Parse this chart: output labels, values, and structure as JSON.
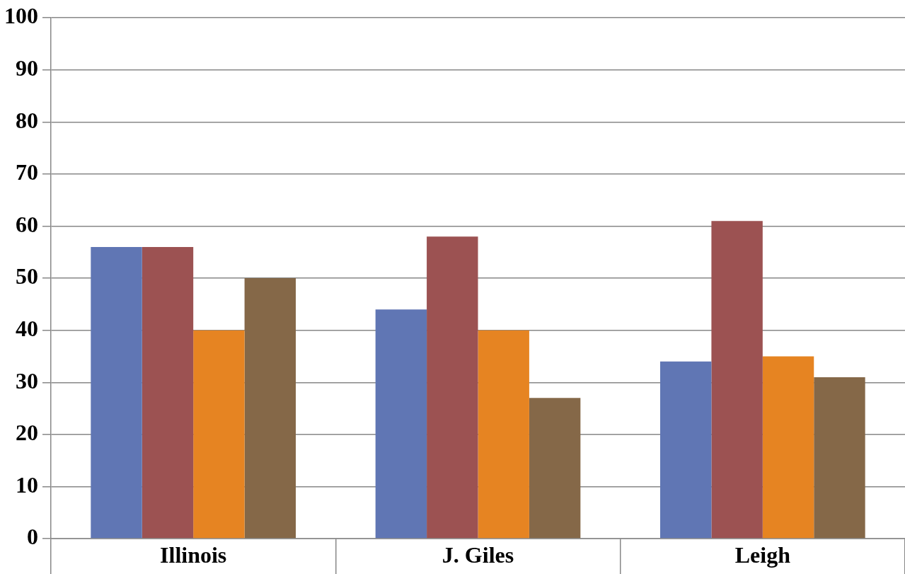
{
  "chart_data": {
    "type": "bar",
    "categories": [
      "Illinois",
      "J. Giles",
      "Leigh"
    ],
    "series": [
      {
        "color": "#6076b4",
        "values": [
          56,
          44,
          34
        ]
      },
      {
        "color": "#9c5252",
        "values": [
          56,
          58,
          61
        ]
      },
      {
        "color": "#e68422",
        "values": [
          40,
          40,
          35
        ]
      },
      {
        "color": "#856848",
        "values": [
          50,
          27,
          31
        ]
      }
    ],
    "ylim": [
      0,
      100
    ],
    "yticks": [
      0,
      10,
      20,
      30,
      40,
      50,
      60,
      70,
      80,
      90,
      100
    ],
    "grid": "y",
    "legend": false
  }
}
